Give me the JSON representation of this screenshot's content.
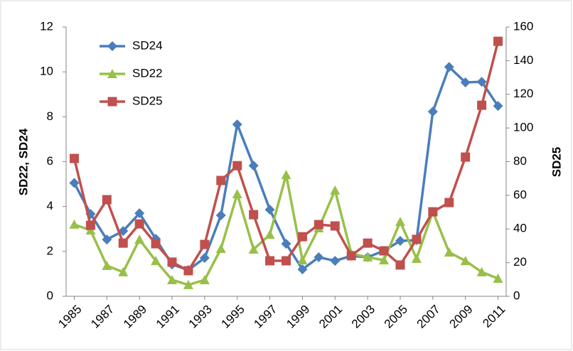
{
  "chart_data": {
    "type": "line",
    "x": [
      1985,
      1986,
      1987,
      1988,
      1989,
      1990,
      1991,
      1992,
      1993,
      1994,
      1995,
      1996,
      1997,
      1998,
      1999,
      2000,
      2001,
      2002,
      2003,
      2004,
      2005,
      2006,
      2007,
      2008,
      2009,
      2010,
      2011
    ],
    "xlim": [
      1984.5,
      2011.5
    ],
    "xticks": [
      1985,
      1987,
      1989,
      1991,
      1993,
      1995,
      1997,
      1999,
      2001,
      2003,
      2005,
      2007,
      2009,
      2011
    ],
    "ylabel": "SD22, SD24",
    "y2label": "SD25",
    "ylim": [
      0,
      12
    ],
    "yticks": [
      0,
      2,
      4,
      6,
      8,
      10,
      12
    ],
    "y2lim": [
      0,
      160
    ],
    "y2ticks": [
      0,
      20,
      40,
      60,
      80,
      100,
      120,
      140,
      160
    ],
    "legend": "upper left",
    "series": [
      {
        "name": "SD24",
        "color": "#4a7ebb",
        "marker": "diamond",
        "values": [
          5.05,
          3.67,
          2.53,
          2.91,
          3.7,
          2.56,
          1.42,
          1.17,
          1.71,
          3.61,
          7.66,
          5.82,
          3.86,
          2.34,
          1.2,
          1.74,
          1.58,
          1.8,
          1.74,
          2.03,
          2.47,
          2.5,
          8.23,
          10.22,
          9.53,
          9.56,
          8.48
        ]
      },
      {
        "name": "SD22",
        "color": "#98c049",
        "marker": "triangle",
        "values": [
          3.2,
          2.94,
          1.36,
          1.08,
          2.53,
          1.58,
          0.73,
          0.51,
          0.73,
          2.12,
          4.56,
          2.09,
          2.75,
          5.41,
          1.61,
          3.04,
          4.72,
          1.9,
          1.74,
          1.61,
          3.32,
          1.68,
          3.77,
          1.96,
          1.58,
          1.08,
          0.79
        ]
      },
      {
        "name": "SD25",
        "color": "#c0504d",
        "marker": "square",
        "axis": "y2",
        "values": [
          81.9,
          42.2,
          57.4,
          31.6,
          43,
          31.2,
          20.3,
          15.2,
          30.8,
          68.8,
          77.6,
          48.5,
          21.1,
          21.1,
          35.4,
          42.6,
          41.8,
          24.1,
          31.6,
          27,
          18.6,
          33.8,
          50.2,
          55.7,
          82.7,
          113.5,
          151.5
        ]
      }
    ]
  }
}
